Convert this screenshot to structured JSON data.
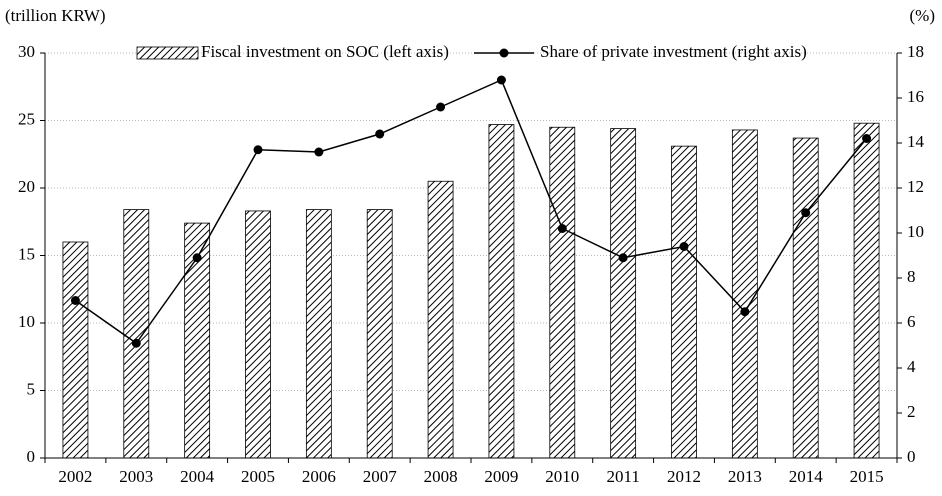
{
  "chart_data": {
    "type": "bar-line",
    "y_label": "(trillion KRW)",
    "y2_label": "(%)",
    "categories": [
      "2002",
      "2003",
      "2004",
      "2005",
      "2006",
      "2007",
      "2008",
      "2009",
      "2010",
      "2011",
      "2012",
      "2013",
      "2014",
      "2015"
    ],
    "series": [
      {
        "name": "Fiscal investment on SOC (left axis)",
        "type": "bar",
        "color": "#000000",
        "values": [
          16.0,
          18.4,
          17.4,
          18.3,
          18.4,
          18.4,
          20.5,
          24.7,
          24.5,
          24.4,
          23.1,
          24.3,
          23.7,
          24.8
        ]
      },
      {
        "name": "Share of private investment (right axis)",
        "type": "line",
        "axis": "y2",
        "color": "#000000",
        "values": [
          7.0,
          5.1,
          8.9,
          13.7,
          13.6,
          14.4,
          15.6,
          16.8,
          10.2,
          8.9,
          9.4,
          6.5,
          10.9,
          14.2
        ]
      }
    ],
    "ylim": [
      0,
      30
    ],
    "yticks": [
      0,
      5,
      10,
      15,
      20,
      25,
      30
    ],
    "y2lim": [
      0,
      18
    ],
    "y2ticks": [
      0,
      2,
      4,
      6,
      8,
      10,
      12,
      14,
      16,
      18
    ],
    "grid": true
  }
}
